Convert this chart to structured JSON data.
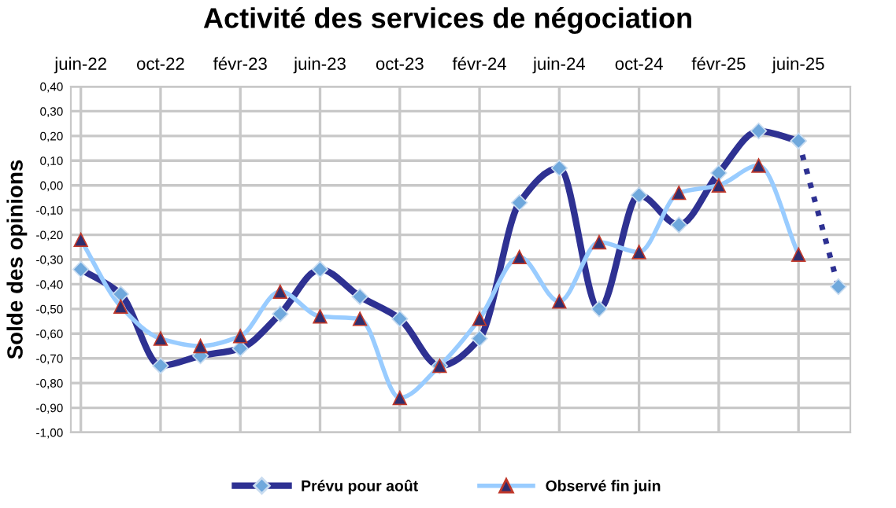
{
  "chart_data": {
    "type": "line",
    "title": "Activité des services de négociation",
    "ylabel": "Solde des opinions",
    "categories": [
      "juin-22",
      null,
      "oct-22",
      null,
      "févr-23",
      null,
      "juin-23",
      null,
      "oct-23",
      null,
      "févr-24",
      null,
      "juin-24",
      null,
      "oct-24",
      null,
      "févr-25",
      null,
      "juin-25",
      null
    ],
    "series": [
      {
        "name": "Prévu pour août",
        "color": "#2e3192",
        "marker": "diamond",
        "line_style": "solid",
        "values": [
          -0.34,
          -0.44,
          -0.73,
          -0.69,
          -0.66,
          -0.52,
          -0.34,
          -0.45,
          -0.54,
          -0.73,
          -0.62,
          -0.07,
          0.07,
          -0.5,
          -0.04,
          -0.16,
          0.05,
          0.22,
          0.18,
          null
        ]
      },
      {
        "color": "#2e3192",
        "marker": "diamond",
        "line_style": "dotted",
        "values": [
          null,
          null,
          null,
          null,
          null,
          null,
          null,
          null,
          null,
          null,
          null,
          null,
          null,
          null,
          null,
          null,
          null,
          null,
          0.18,
          -0.41
        ]
      },
      {
        "name": "Observé fin juin",
        "color": "#99ccff",
        "marker": "triangle",
        "line_style": "solid",
        "values": [
          -0.22,
          -0.49,
          -0.62,
          -0.65,
          -0.61,
          -0.43,
          -0.53,
          -0.54,
          -0.86,
          -0.73,
          -0.54,
          -0.29,
          -0.47,
          -0.23,
          -0.27,
          -0.03,
          0.0,
          0.08,
          -0.28,
          null
        ]
      }
    ],
    "ylim": [
      -1.0,
      0.4
    ],
    "yticks": [
      {
        "value": -1.0,
        "label": "-1,00"
      },
      {
        "value": -0.9,
        "label": "-0,90"
      },
      {
        "value": -0.8,
        "label": "-0,80"
      },
      {
        "value": -0.7,
        "label": "-0,70"
      },
      {
        "value": -0.6,
        "label": "-0,60"
      },
      {
        "value": -0.5,
        "label": "-0,50"
      },
      {
        "value": -0.4,
        "label": "-0,40"
      },
      {
        "value": -0.3,
        "label": "-0,30"
      },
      {
        "value": -0.2,
        "label": "-0,20"
      },
      {
        "value": -0.1,
        "label": "-0,10"
      },
      {
        "value": 0.0,
        "label": "0,00"
      },
      {
        "value": 0.1,
        "label": "0,10"
      },
      {
        "value": 0.2,
        "label": "0,20"
      },
      {
        "value": 0.3,
        "label": "0,30"
      },
      {
        "value": 0.4,
        "label": "0,40"
      }
    ],
    "grid": true,
    "legend": "bottom"
  }
}
